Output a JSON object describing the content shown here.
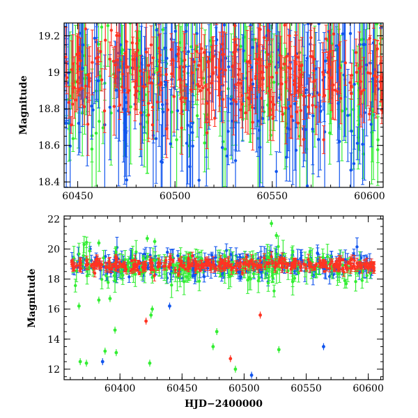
{
  "colors": {
    "green": "#33ee33",
    "blue": "#1155ee",
    "red": "#ff3322"
  },
  "chart_data": [
    {
      "type": "scatter",
      "title": "",
      "xlabel": "",
      "ylabel": "Magnitude",
      "xlim": [
        60443,
        60607
      ],
      "ylim": [
        19.27,
        18.37
      ],
      "y_inverted": true,
      "x_ticks": [
        60450,
        60500,
        60550,
        60600
      ],
      "y_ticks": [
        18.4,
        18.6,
        18.8,
        19,
        19.2
      ],
      "x_tick_labels": [
        "60450",
        "60500",
        "60550",
        "60600"
      ],
      "y_tick_labels": [
        "18.4",
        "18.6",
        "18.8",
        "19",
        "19.2"
      ],
      "series": [
        {
          "color_key": "green",
          "error_bars": true,
          "x_range": [
            60443,
            60607
          ],
          "y_center": 18.95,
          "spread": 0.35,
          "n": 190
        },
        {
          "color_key": "blue",
          "error_bars": true,
          "x_range": [
            60443,
            60607
          ],
          "y_center": 18.95,
          "spread": 0.4,
          "n": 230
        },
        {
          "color_key": "red",
          "error_bars": true,
          "x_range": [
            60443,
            60607
          ],
          "y_center": 18.98,
          "spread": 0.2,
          "n": 280
        }
      ]
    },
    {
      "type": "scatter",
      "title": "",
      "xlabel": "HJD−2400000",
      "ylabel": "Magnitude",
      "xlim": [
        60355,
        60612
      ],
      "ylim": [
        22.2,
        11.3
      ],
      "y_inverted": true,
      "x_ticks": [
        60400,
        60450,
        60500,
        60550,
        60600
      ],
      "y_ticks": [
        12,
        14,
        16,
        18,
        20,
        22
      ],
      "x_tick_labels": [
        "60400",
        "60450",
        "60500",
        "60550",
        "60600"
      ],
      "y_tick_labels": [
        "12",
        "14",
        "16",
        "18",
        "20",
        "22"
      ],
      "series": [
        {
          "color_key": "blue",
          "error_bars": true,
          "x_range": [
            60360,
            60605
          ],
          "y_center": 18.95,
          "spread": 0.7,
          "n": 260
        },
        {
          "color_key": "green",
          "error_bars": true,
          "x_range": [
            60360,
            60605
          ],
          "y_center": 18.8,
          "spread": 0.9,
          "n": 220
        },
        {
          "color_key": "red",
          "error_bars": true,
          "x_range": [
            60360,
            60605
          ],
          "y_center": 18.95,
          "spread": 0.35,
          "n": 320
        }
      ],
      "outliers": [
        {
          "color_key": "green",
          "points": [
            [
              60368,
              12.5
            ],
            [
              60373,
              12.4
            ],
            [
              60388,
              13.2
            ],
            [
              60397,
              13.1
            ],
            [
              60396,
              14.6
            ],
            [
              60383,
              16.6
            ],
            [
              60392,
              16.7
            ],
            [
              60424,
              12.4
            ],
            [
              60425,
              15.6
            ],
            [
              60426,
              16.0
            ],
            [
              60422,
              20.7
            ],
            [
              60428,
              20.5
            ],
            [
              60475,
              13.5
            ],
            [
              60478,
              14.5
            ],
            [
              60493,
              12.0
            ],
            [
              60522,
              21.7
            ],
            [
              60526,
              20.9
            ],
            [
              60528,
              13.3
            ],
            [
              60367,
              16.2
            ],
            [
              60383,
              20.4
            ]
          ]
        },
        {
          "color_key": "blue",
          "points": [
            [
              60386,
              12.5
            ],
            [
              60506,
              11.6
            ],
            [
              60564,
              13.5
            ],
            [
              60440,
              16.2
            ]
          ]
        },
        {
          "color_key": "red",
          "points": [
            [
              60421,
              15.2
            ],
            [
              60489,
              12.7
            ],
            [
              60513,
              15.6
            ]
          ]
        }
      ]
    }
  ]
}
